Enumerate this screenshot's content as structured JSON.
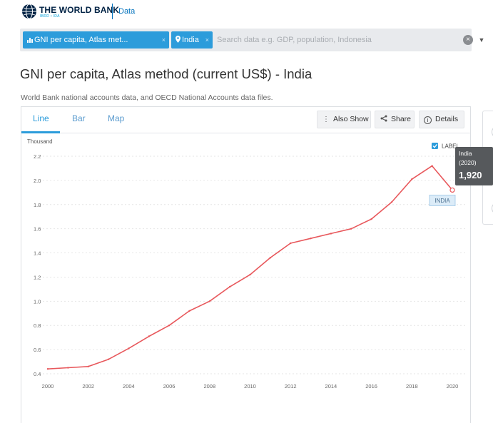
{
  "header": {
    "brand": "THE WORLD BANK",
    "brand_sub": "IBRD • IDA",
    "data_link": "Data"
  },
  "search": {
    "indicator_chip": "GNI per capita, Atlas met...",
    "country_chip": "India",
    "placeholder": "Search data e.g. GDP, population, Indonesia",
    "clear_glyph": "×",
    "caret_glyph": "▼",
    "chip_remove_glyph": "×"
  },
  "page": {
    "title": "GNI per capita, Atlas method (current US$) - India",
    "source": "World Bank national accounts data, and OECD National Accounts data files."
  },
  "tabs": [
    "Line",
    "Bar",
    "Map"
  ],
  "toolbar": {
    "also_show": "Also Show",
    "share": "Share",
    "details": "Details"
  },
  "icons": {
    "also_show": "vertical-dots-icon",
    "share": "share-icon",
    "details": "info-icon",
    "indicator_chip": "bar-chart-icon",
    "country_chip": "location-pin-icon"
  },
  "colors": {
    "accent": "#2c9cdb",
    "line": "#e8585c",
    "tooltip_bg": "#56595c"
  },
  "chart_data": {
    "type": "line",
    "ylabel": "Thousand",
    "ylim": [
      0.4,
      2.2
    ],
    "yticks": [
      "2.2",
      "2.0",
      "1.8",
      "1.6",
      "1.4",
      "1.2",
      "1.0",
      "0.8",
      "0.6",
      "0.4"
    ],
    "xticks": [
      "2000",
      "2002",
      "2004",
      "2006",
      "2008",
      "2010",
      "2012",
      "2014",
      "2016",
      "2018",
      "2020"
    ],
    "x": [
      2000,
      2001,
      2002,
      2003,
      2004,
      2005,
      2006,
      2007,
      2008,
      2009,
      2010,
      2011,
      2012,
      2013,
      2014,
      2015,
      2016,
      2017,
      2018,
      2019,
      2020
    ],
    "series": [
      {
        "name": "INDIA",
        "values": [
          0.44,
          0.45,
          0.46,
          0.52,
          0.61,
          0.71,
          0.8,
          0.92,
          1.0,
          1.12,
          1.22,
          1.36,
          1.48,
          1.52,
          1.56,
          1.6,
          1.68,
          1.82,
          2.01,
          2.12,
          1.92
        ]
      }
    ],
    "legend": {
      "checkbox_label": "LABEL",
      "checked": true,
      "position": "top-right"
    },
    "grid": true,
    "tooltip": {
      "country": "India",
      "year": "(2020)",
      "value": "1,920"
    },
    "series_label": "INDIA"
  }
}
